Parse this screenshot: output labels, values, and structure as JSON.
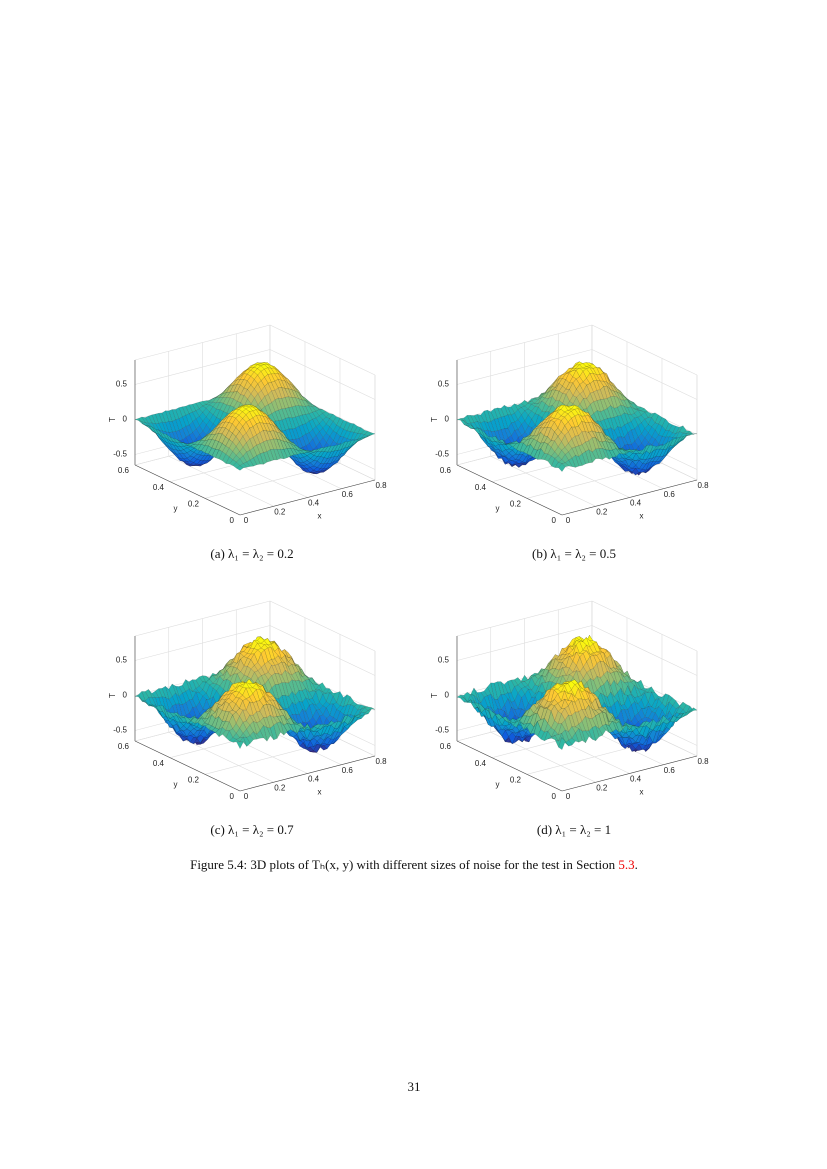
{
  "figures": [
    {
      "zlabel": "T",
      "ylabel": "y",
      "xlabel": "x",
      "zticks": [
        0.5,
        0,
        -0.5
      ],
      "yticks": [
        0.6,
        0.4,
        0.2,
        0
      ],
      "xticks": [
        0,
        0.2,
        0.4,
        0.6,
        0.8
      ],
      "caption": "(a) λ₁ = λ₂ = 0.2"
    },
    {
      "zlabel": "T",
      "ylabel": "y",
      "xlabel": "x",
      "zticks": [
        0.5,
        0,
        -0.5
      ],
      "yticks": [
        0.6,
        0.4,
        0.2,
        0
      ],
      "xticks": [
        0,
        0.2,
        0.4,
        0.6,
        0.8
      ],
      "caption": "(b) λ₁ = λ₂ = 0.5"
    },
    {
      "zlabel": "T",
      "ylabel": "y",
      "xlabel": "x",
      "zticks": [
        0.5,
        0,
        -0.5
      ],
      "yticks": [
        0.6,
        0.4,
        0.2,
        0
      ],
      "xticks": [
        0,
        0.2,
        0.4,
        0.6,
        0.8
      ],
      "caption": "(c) λ₁ = λ₂ = 0.7"
    },
    {
      "zlabel": "T",
      "ylabel": "y",
      "xlabel": "x",
      "zticks": [
        0.5,
        0,
        -0.5
      ],
      "yticks": [
        0.6,
        0.4,
        0.2,
        0
      ],
      "xticks": [
        0,
        0.2,
        0.4,
        0.6,
        0.8
      ],
      "caption": "(d) λ₁ = λ₂ = 1"
    }
  ],
  "figure_caption": {
    "label": "Figure 5.4:",
    "text": "3D plots of Tₕ(x, y) with different sizes of noise for the test in Section",
    "ref": "5.3",
    "end": "."
  },
  "page_number": "31"
}
